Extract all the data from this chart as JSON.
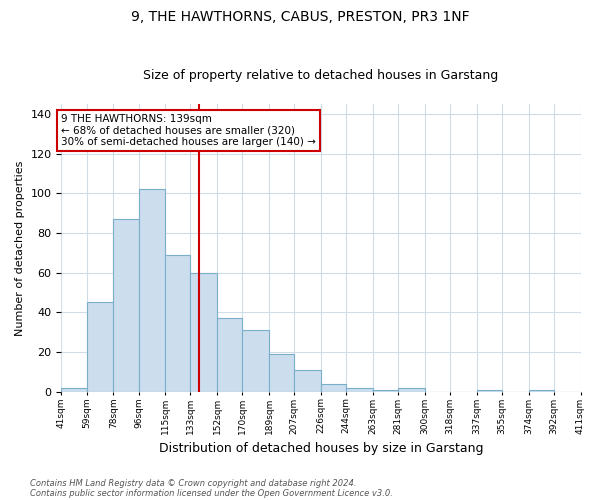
{
  "title": "9, THE HAWTHORNS, CABUS, PRESTON, PR3 1NF",
  "subtitle": "Size of property relative to detached houses in Garstang",
  "xlabel": "Distribution of detached houses by size in Garstang",
  "ylabel": "Number of detached properties",
  "bar_edges": [
    41,
    59,
    78,
    96,
    115,
    133,
    152,
    170,
    189,
    207,
    226,
    244,
    263,
    281,
    300,
    318,
    337,
    355,
    374,
    392,
    411
  ],
  "bar_values": [
    2,
    45,
    87,
    102,
    69,
    60,
    37,
    31,
    19,
    11,
    4,
    2,
    1,
    2,
    0,
    0,
    1,
    0,
    1,
    0
  ],
  "property_value": 139,
  "bar_color": "#ccdded",
  "bar_edge_color": "#7aafc9",
  "vline_color": "#cc0000",
  "annotation_text": "9 THE HAWTHORNS: 139sqm\n← 68% of detached houses are smaller (320)\n30% of semi-detached houses are larger (140) →",
  "annotation_box_color": "#ffffff",
  "annotation_box_edge_color": "#cc0000",
  "ylim": [
    0,
    145
  ],
  "yticks": [
    0,
    20,
    40,
    60,
    80,
    100,
    120,
    140
  ],
  "footer_line1": "Contains HM Land Registry data © Crown copyright and database right 2024.",
  "footer_line2": "Contains public sector information licensed under the Open Government Licence v3.0.",
  "background_color": "#ffffff",
  "grid_color": "#d0dce8",
  "title_fontsize": 10,
  "subtitle_fontsize": 9
}
